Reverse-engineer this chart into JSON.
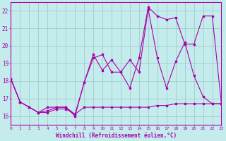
{
  "xlabel": "Windchill (Refroidissement éolien,°C)",
  "background_color": "#c5ecec",
  "grid_color": "#a0cccc",
  "line_color": "#aa00aa",
  "xlim": [
    0,
    23
  ],
  "ylim": [
    15.5,
    22.5
  ],
  "yticks": [
    16,
    17,
    18,
    19,
    20,
    21,
    22
  ],
  "xticks": [
    0,
    1,
    2,
    3,
    4,
    5,
    6,
    7,
    8,
    9,
    10,
    11,
    12,
    13,
    14,
    15,
    16,
    17,
    18,
    19,
    20,
    21,
    22,
    23
  ],
  "s1_x": [
    0,
    1,
    2,
    3,
    4,
    5,
    6,
    7,
    8,
    9,
    10,
    11,
    12,
    13,
    14,
    15,
    16,
    17,
    18,
    19,
    20,
    21,
    22,
    23
  ],
  "s1_y": [
    18.1,
    16.8,
    16.5,
    16.2,
    16.2,
    16.4,
    16.4,
    16.1,
    16.5,
    16.5,
    16.5,
    16.5,
    16.5,
    16.5,
    16.5,
    16.5,
    16.6,
    16.6,
    16.7,
    16.7,
    16.7,
    16.7,
    16.7,
    16.7
  ],
  "s2_x": [
    0,
    1,
    2,
    3,
    4,
    5,
    6,
    7,
    8,
    9,
    10,
    11,
    12,
    13,
    14,
    15,
    16,
    17,
    18,
    19,
    20,
    21,
    22,
    23
  ],
  "s2_y": [
    18.1,
    16.8,
    16.5,
    16.2,
    16.5,
    16.5,
    16.5,
    16.0,
    17.9,
    19.3,
    19.5,
    18.5,
    18.5,
    19.2,
    18.5,
    22.1,
    19.3,
    17.6,
    19.1,
    20.2,
    18.3,
    17.1,
    16.7,
    16.7
  ],
  "s3_x": [
    0,
    1,
    2,
    3,
    4,
    5,
    6,
    7,
    8,
    9,
    10,
    11,
    12,
    13,
    14,
    15,
    16,
    17,
    18,
    19,
    20,
    21,
    22,
    23
  ],
  "s3_y": [
    18.1,
    16.8,
    16.5,
    16.2,
    16.3,
    16.5,
    16.5,
    16.1,
    17.9,
    19.5,
    18.6,
    19.2,
    18.5,
    17.6,
    19.3,
    22.2,
    21.7,
    21.5,
    21.6,
    20.1,
    20.1,
    21.7,
    21.7,
    16.7
  ]
}
